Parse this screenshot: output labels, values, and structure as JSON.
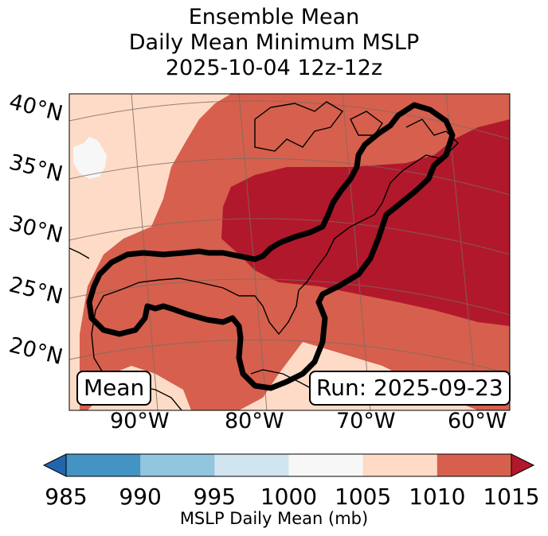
{
  "title": {
    "line1": "Ensemble Mean",
    "line2": "Daily Mean Minimum MSLP",
    "line3": "2025-10-04 12z-12z"
  },
  "lat_labels": [
    "40°N",
    "35°N",
    "30°N",
    "25°N",
    "20°N"
  ],
  "lon_labels": [
    "90°W",
    "80°W",
    "70°W",
    "60°W"
  ],
  "mean_label": "Mean",
  "run_label": "Run: 2025-09-23",
  "colorbar": {
    "ticks": [
      "985",
      "990",
      "995",
      "1000",
      "1005",
      "1010",
      "1015"
    ],
    "label": "MSLP Daily Mean (mb)",
    "colors": [
      "#2166ac",
      "#4393c3",
      "#92c5de",
      "#d1e5f0",
      "#f7f7f7",
      "#fddbc7",
      "#d6604d",
      "#b2182b"
    ]
  },
  "map_colors": {
    "c1000_1005": "#f7f7f7",
    "c1005_1010": "#fddbc7",
    "c1010_1015": "#d6604d",
    "c_above_1015": "#b2182b"
  }
}
